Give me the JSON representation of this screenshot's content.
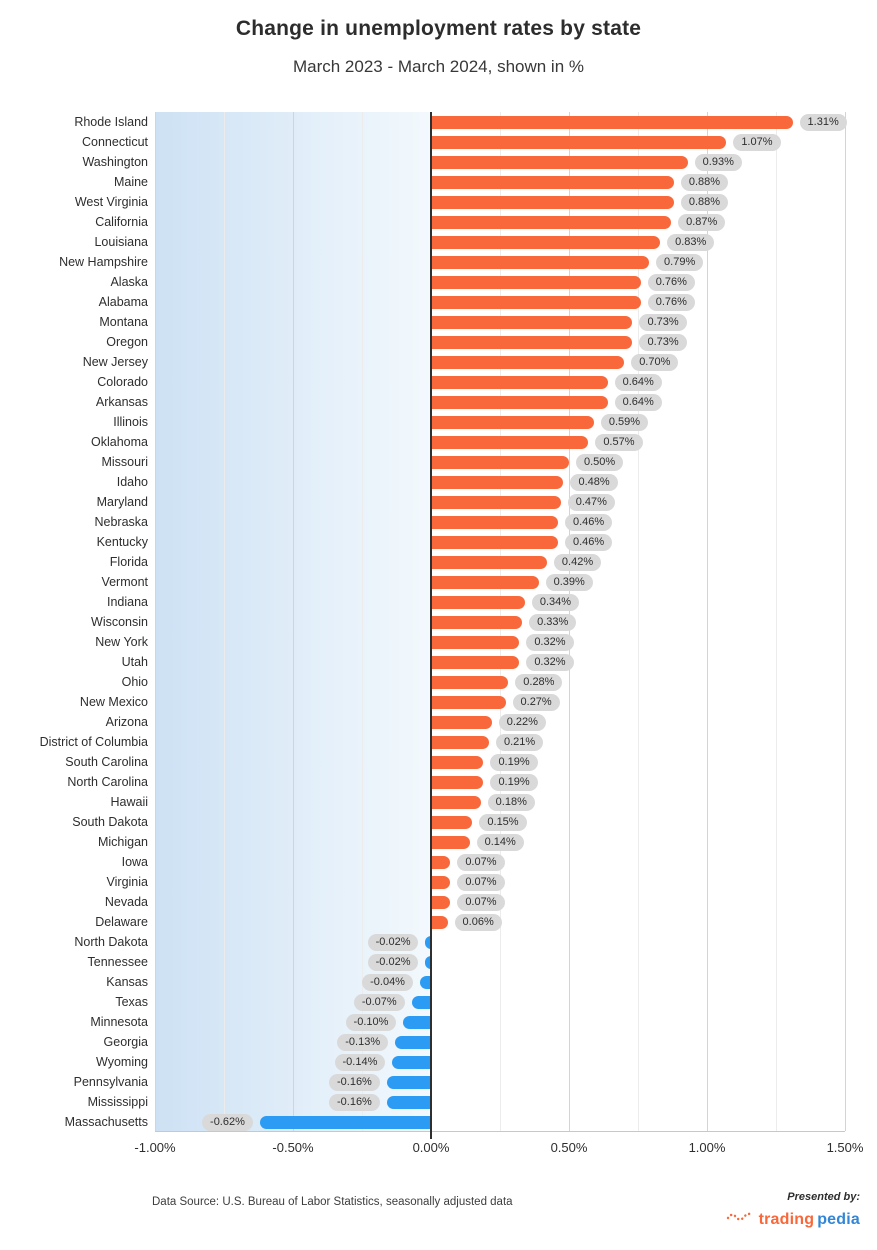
{
  "title": "Change in unemployment rates by state",
  "subtitle": "March 2023 - March 2024, shown in %",
  "footer": {
    "source": "Data Source: U.S. Bureau of Labor Statistics, seasonally adjusted data",
    "presented_by": "Presented by:",
    "brand_part1": "trading",
    "brand_part2": "pedia"
  },
  "colors": {
    "positive": "#F9683A",
    "negative": "#2B9BF4",
    "pill_bg": "#D9D9D9",
    "pill_text": "#2E2E2E",
    "axis_line": "#2F2F2F",
    "grid_major": "#D4D4D4",
    "grid_minor": "#ECECEC",
    "neg_bg_left": "#CDE1F4",
    "neg_bg_right": "#F3F9FD",
    "brand_orange": "#F9683A",
    "brand_blue": "#3386D6"
  },
  "chart_data": {
    "type": "bar",
    "orientation": "horizontal",
    "title": "Change in unemployment rates by state",
    "subtitle": "March 2023 - March 2024, shown in %",
    "xlabel": "",
    "ylabel": "",
    "xlim": [
      -1.0,
      1.5
    ],
    "grid": true,
    "x_ticks": [
      "-1.00%",
      "-0.50%",
      "0.00%",
      "0.50%",
      "1.00%",
      "1.50%"
    ],
    "x_tick_values": [
      -1.0,
      -0.5,
      0,
      0.5,
      1.0,
      1.5
    ],
    "categories": [
      "Rhode Island",
      "Connecticut",
      "Washington",
      "Maine",
      "West Virginia",
      "California",
      "Louisiana",
      "New Hampshire",
      "Alaska",
      "Alabama",
      "Montana",
      "Oregon",
      "New Jersey",
      "Colorado",
      "Arkansas",
      "Illinois",
      "Oklahoma",
      "Missouri",
      "Idaho",
      "Maryland",
      "Nebraska",
      "Kentucky",
      "Florida",
      "Vermont",
      "Indiana",
      "Wisconsin",
      "New York",
      "Utah",
      "Ohio",
      "New Mexico",
      "Arizona",
      "District of Columbia",
      "South Carolina",
      "North Carolina",
      "Hawaii",
      "South Dakota",
      "Michigan",
      "Iowa",
      "Virginia",
      "Nevada",
      "Delaware",
      "North Dakota",
      "Tennessee",
      "Kansas",
      "Texas",
      "Minnesota",
      "Georgia",
      "Wyoming",
      "Pennsylvania",
      "Mississippi",
      "Massachusetts"
    ],
    "values": [
      1.31,
      1.07,
      0.93,
      0.88,
      0.88,
      0.87,
      0.83,
      0.79,
      0.76,
      0.76,
      0.73,
      0.73,
      0.7,
      0.64,
      0.64,
      0.59,
      0.57,
      0.5,
      0.48,
      0.47,
      0.46,
      0.46,
      0.42,
      0.39,
      0.34,
      0.33,
      0.32,
      0.32,
      0.28,
      0.27,
      0.22,
      0.21,
      0.19,
      0.19,
      0.18,
      0.15,
      0.14,
      0.07,
      0.07,
      0.07,
      0.06,
      -0.02,
      -0.02,
      -0.04,
      -0.07,
      -0.1,
      -0.13,
      -0.14,
      -0.16,
      -0.16,
      -0.62
    ],
    "labels": [
      "1.31%",
      "1.07%",
      "0.93%",
      "0.88%",
      "0.88%",
      "0.87%",
      "0.83%",
      "0.79%",
      "0.76%",
      "0.76%",
      "0.73%",
      "0.73%",
      "0.70%",
      "0.64%",
      "0.64%",
      "0.59%",
      "0.57%",
      "0.50%",
      "0.48%",
      "0.47%",
      "0.46%",
      "0.46%",
      "0.42%",
      "0.39%",
      "0.34%",
      "0.33%",
      "0.32%",
      "0.32%",
      "0.28%",
      "0.27%",
      "0.22%",
      "0.21%",
      "0.19%",
      "0.19%",
      "0.18%",
      "0.15%",
      "0.14%",
      "0.07%",
      "0.07%",
      "0.07%",
      "0.06%",
      "-0.02%",
      "-0.02%",
      "-0.04%",
      "-0.07%",
      "-0.10%",
      "-0.13%",
      "-0.14%",
      "-0.16%",
      "-0.16%",
      "-0.62%"
    ]
  }
}
